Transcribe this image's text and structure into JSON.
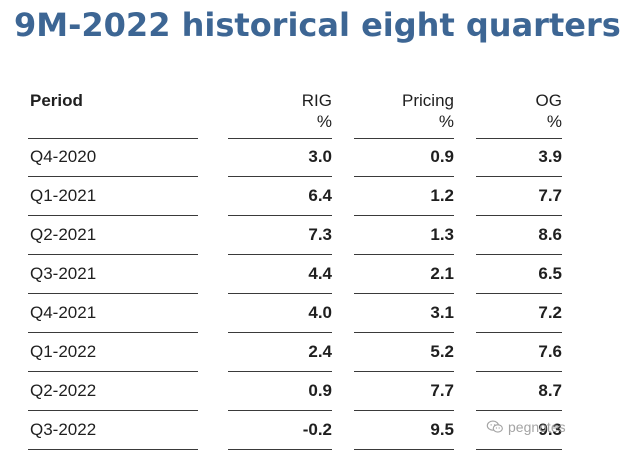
{
  "title": "9M-2022 historical eight quarters",
  "table": {
    "headers": {
      "period": "Period",
      "rig": [
        "RIG",
        "%"
      ],
      "pricing": [
        "Pricing",
        "%"
      ],
      "og": [
        "OG",
        "%"
      ]
    },
    "rows": [
      {
        "period": "Q4-2020",
        "rig": "3.0",
        "pricing": "0.9",
        "og": "3.9"
      },
      {
        "period": "Q1-2021",
        "rig": "6.4",
        "pricing": "1.2",
        "og": "7.7"
      },
      {
        "period": "Q2-2021",
        "rig": "7.3",
        "pricing": "1.3",
        "og": "8.6"
      },
      {
        "period": "Q3-2021",
        "rig": "4.4",
        "pricing": "2.1",
        "og": "6.5"
      },
      {
        "period": "Q4-2021",
        "rig": "4.0",
        "pricing": "3.1",
        "og": "7.2"
      },
      {
        "period": "Q1-2022",
        "rig": "2.4",
        "pricing": "5.2",
        "og": "7.6"
      },
      {
        "period": "Q2-2022",
        "rig": "0.9",
        "pricing": "7.7",
        "og": "8.7"
      },
      {
        "period": "Q3-2022",
        "rig": "-0.2",
        "pricing": "9.5",
        "og": "9.3"
      }
    ]
  },
  "watermark": {
    "text": "pegnotes",
    "icon": "wechat-icon"
  },
  "colors": {
    "title": "#3d6694",
    "text": "#1f1f1f",
    "rule": "#3a3a3a"
  }
}
